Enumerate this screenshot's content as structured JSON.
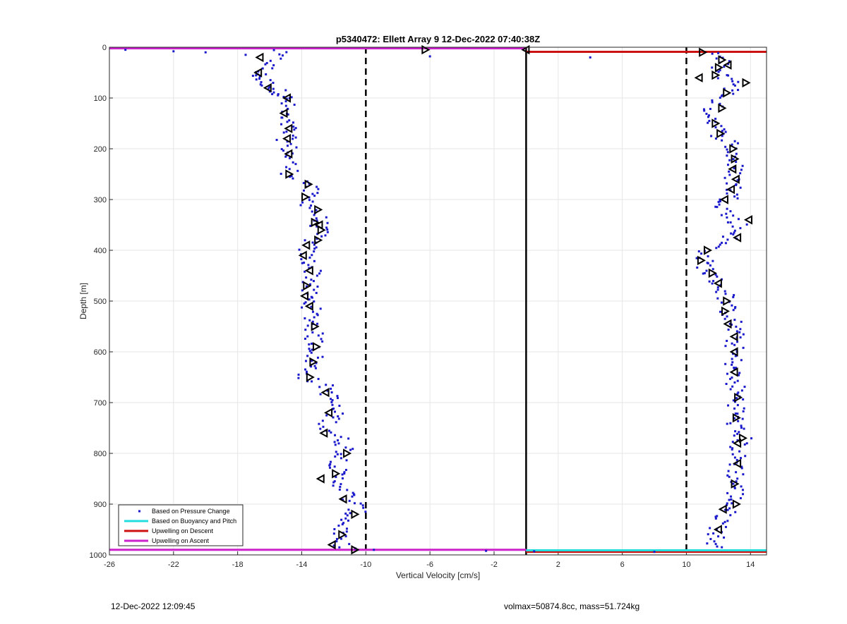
{
  "chart_data": {
    "type": "scatter",
    "title": "p5340472: Ellett Array 9 12-Dec-2022 07:40:38Z",
    "xlabel": "Vertical Velocity [cm/s]",
    "ylabel": "Depth [m]",
    "xlim": [
      -26,
      15
    ],
    "ylim": [
      0,
      1000
    ],
    "y_reversed": true,
    "grid": true,
    "x_ticks": [
      -26,
      -22,
      -18,
      -14,
      -10,
      -6,
      -2,
      2,
      6,
      10,
      14
    ],
    "y_ticks": [
      0,
      100,
      200,
      300,
      400,
      500,
      600,
      700,
      800,
      900,
      1000
    ],
    "colors": {
      "pressure": "#1a1acc",
      "buoyancy": "#22dddd",
      "descent": "#cc1111",
      "ascent": "#cc22cc",
      "reference": "#000000"
    },
    "legend": {
      "placement": "bottom-left",
      "entries": [
        {
          "label": "Based on Pressure Change",
          "style": "dot",
          "color": "#1a1acc"
        },
        {
          "label": "Based on Buoyancy and Pitch",
          "style": "line",
          "color": "#22dddd"
        },
        {
          "label": "Upwelling on Descent",
          "style": "line",
          "color": "#cc1111"
        },
        {
          "label": "Upwelling on Ascent",
          "style": "line",
          "color": "#cc22cc"
        }
      ]
    },
    "reference_lines": [
      {
        "type": "vertical",
        "x": -10,
        "style": "dashed"
      },
      {
        "type": "vertical",
        "x": 10,
        "style": "dashed"
      },
      {
        "type": "vertical",
        "x": 0,
        "style": "solid"
      }
    ],
    "series": [
      {
        "name": "Based on Pressure Change",
        "kind": "profile",
        "branches": [
          {
            "y": [
              5,
              30,
              50,
              60,
              75,
              90,
              100,
              120,
              140,
              160,
              180,
              200,
              220,
              250,
              270,
              290,
              310,
              330,
              350,
              370,
              390,
              410,
              430,
              450,
              470,
              490,
              510,
              530,
              550,
              570,
              590,
              610,
              630,
              650,
              670,
              690,
              710,
              730,
              750,
              770,
              790,
              810,
              830,
              850,
              870,
              890,
              910,
              930,
              950,
              970,
              990
            ],
            "x": [
              -15.5,
              -15.8,
              -16.7,
              -16.6,
              -16.0,
              -15.3,
              -15.0,
              -15.0,
              -15.3,
              -14.8,
              -15.0,
              -14.8,
              -14.8,
              -14.7,
              -13.5,
              -13.6,
              -13.5,
              -13.0,
              -12.9,
              -13.0,
              -13.6,
              -13.8,
              -13.4,
              -13.2,
              -13.6,
              -13.6,
              -13.4,
              -13.4,
              -13.2,
              -13.3,
              -13.0,
              -13.2,
              -13.4,
              -13.7,
              -12.4,
              -12.2,
              -12.0,
              -12.0,
              -12.5,
              -11.6,
              -11.2,
              -11.5,
              -11.8,
              -11.8,
              -11.3,
              -11.0,
              -10.5,
              -11.2,
              -11.5,
              -12.0,
              -10.8
            ],
            "jitter": 0.6
          },
          {
            "y": [
              10,
              30,
              50,
              70,
              90,
              110,
              130,
              150,
              170,
              190,
              210,
              230,
              250,
              270,
              290,
              310,
              330,
              350,
              370,
              390,
              410,
              430,
              450,
              470,
              490,
              510,
              530,
              550,
              570,
              590,
              610,
              630,
              650,
              670,
              690,
              710,
              730,
              750,
              770,
              790,
              810,
              830,
              850,
              870,
              890,
              910,
              930,
              950,
              970,
              990
            ],
            "x": [
              11.8,
              12.2,
              11.8,
              13.2,
              12.6,
              11.8,
              11.5,
              11.9,
              12.0,
              12.8,
              12.9,
              13.0,
              12.9,
              13.0,
              12.9,
              12.4,
              12.5,
              13.3,
              13.0,
              12.0,
              11.0,
              11.2,
              11.5,
              12.1,
              12.5,
              12.5,
              12.8,
              13.0,
              13.0,
              13.0,
              12.9,
              13.0,
              12.8,
              13.1,
              13.2,
              13.2,
              13.1,
              13.0,
              13.5,
              13.2,
              13.1,
              13.2,
              13.0,
              13.1,
              13.0,
              12.6,
              12.3,
              12.0,
              11.8,
              11.7
            ],
            "jitter": 0.6
          }
        ],
        "surface_points": {
          "y": [
            5,
            8,
            10,
            15,
            18,
            20
          ],
          "x": [
            -25.0,
            -22.0,
            -20.0,
            -17.5,
            -6.0,
            4.0
          ]
        },
        "bottom_points": {
          "y": [
            990,
            992,
            993,
            994
          ],
          "x": [
            -9.5,
            -2.5,
            0.5,
            8.0
          ]
        }
      },
      {
        "name": "",
        "kind": "triangle-markers",
        "y": [
          5,
          5,
          10,
          20,
          25,
          35,
          40,
          50,
          55,
          60,
          70,
          80,
          90,
          100,
          120,
          130,
          150,
          160,
          170,
          180,
          200,
          210,
          220,
          240,
          250,
          260,
          270,
          280,
          295,
          300,
          320,
          340,
          345,
          350,
          360,
          375,
          380,
          390,
          400,
          410,
          420,
          440,
          445,
          465,
          470,
          490,
          500,
          510,
          520,
          545,
          550,
          570,
          590,
          600,
          620,
          640,
          650,
          680,
          690,
          720,
          730,
          760,
          770,
          780,
          800,
          820,
          840,
          850,
          860,
          890,
          900,
          910,
          920,
          950,
          960,
          980,
          990
        ],
        "x": [
          -6.3,
          0.0,
          11.0,
          -16.6,
          12.2,
          12.6,
          12.0,
          -16.7,
          11.8,
          10.8,
          13.7,
          -16.1,
          12.5,
          -14.9,
          12.2,
          -15.1,
          11.8,
          -14.8,
          12.1,
          -14.9,
          12.9,
          -14.8,
          13.0,
          12.9,
          -14.8,
          13.1,
          -13.6,
          12.8,
          -13.8,
          12.4,
          -13.0,
          13.9,
          -13.2,
          -12.9,
          -12.8,
          13.2,
          -13.0,
          -13.7,
          11.3,
          -13.9,
          10.9,
          -13.5,
          11.6,
          12.0,
          -13.7,
          -13.8,
          12.5,
          -13.5,
          12.4,
          12.6,
          -13.2,
          13.0,
          -13.1,
          13.0,
          -13.3,
          13.0,
          -13.5,
          -12.5,
          13.2,
          -12.3,
          13.1,
          -12.6,
          13.5,
          13.2,
          -11.2,
          13.2,
          -11.9,
          -12.8,
          13.0,
          -11.4,
          13.1,
          12.3,
          -10.7,
          12.0,
          -11.5,
          -12.1,
          -10.7
        ]
      },
      {
        "name": "Upwelling on Descent",
        "kind": "hlines",
        "segments": [
          {
            "y": 9,
            "x": [
              0,
              15
            ]
          },
          {
            "y": 994,
            "x": [
              0,
              15
            ]
          }
        ]
      },
      {
        "name": "Upwelling on Ascent",
        "kind": "hlines",
        "segments": [
          {
            "y": 2,
            "x": [
              -26,
              0
            ]
          },
          {
            "y": 990,
            "x": [
              -26,
              0
            ]
          }
        ]
      },
      {
        "name": "Based on Buoyancy and Pitch",
        "kind": "hlines",
        "segments": [
          {
            "y": 991,
            "x": [
              0,
              15
            ]
          }
        ]
      }
    ]
  },
  "footer": {
    "timestamp": "12-Dec-2022 12:09:45",
    "info": "volmax=50874.8cc, mass=51.724kg"
  }
}
